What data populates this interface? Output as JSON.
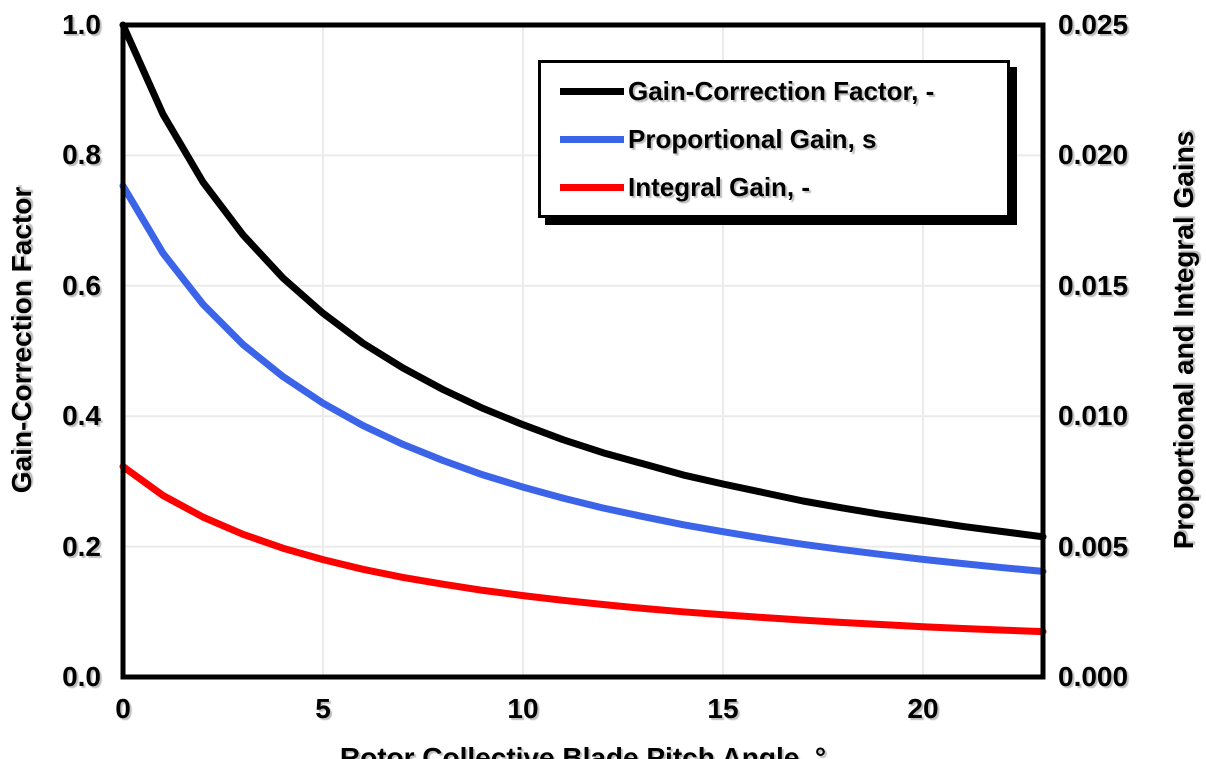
{
  "chart_data": {
    "type": "line",
    "title": "",
    "xlabel": "Rotor Collective Blade Pitch Angle, °",
    "ylabel_left": "Gain-Correction Factor",
    "ylabel_right": "Proportional and Integral Gains",
    "xlim": [
      0,
      23
    ],
    "xticks": [
      0,
      5,
      10,
      15,
      20
    ],
    "xtick_labels": [
      "0",
      "5",
      "10",
      "15",
      "20"
    ],
    "ylim_left": [
      0.0,
      1.0
    ],
    "yticks_left": [
      0.0,
      0.2,
      0.4,
      0.6,
      0.8,
      1.0
    ],
    "ytick_labels_left": [
      "0.0",
      "0.2",
      "0.4",
      "0.6",
      "0.8",
      "1.0"
    ],
    "ylim_right": [
      0.0,
      0.025
    ],
    "yticks_right": [
      0.0,
      0.005,
      0.01,
      0.015,
      0.02,
      0.025
    ],
    "ytick_labels_right": [
      "0.000",
      "0.005",
      "0.010",
      "0.015",
      "0.020",
      "0.025"
    ],
    "grid": true,
    "gridline_color": "#ebebeb",
    "legend_position": "top-center-inside",
    "x": [
      0,
      1,
      2,
      3,
      4,
      5,
      6,
      7,
      8,
      9,
      10,
      11,
      12,
      13,
      14,
      15,
      16,
      17,
      18,
      19,
      20,
      21,
      22,
      23
    ],
    "series": [
      {
        "name": "Gain-Correction Factor, -",
        "axis": "left",
        "color": "#000000",
        "values": [
          1.0,
          0.863,
          0.759,
          0.678,
          0.612,
          0.558,
          0.512,
          0.474,
          0.441,
          0.412,
          0.387,
          0.364,
          0.344,
          0.327,
          0.31,
          0.296,
          0.283,
          0.27,
          0.259,
          0.249,
          0.24,
          0.231,
          0.223,
          0.215
        ]
      },
      {
        "name": "Proportional Gain, s",
        "axis": "right",
        "color": "#3B64E9",
        "values": [
          0.01883,
          0.01625,
          0.01429,
          0.01275,
          0.01152,
          0.0105,
          0.00964,
          0.00892,
          0.0083,
          0.00775,
          0.00728,
          0.00686,
          0.00648,
          0.00615,
          0.00584,
          0.00557,
          0.00532,
          0.00509,
          0.00488,
          0.00469,
          0.00451,
          0.00435,
          0.00419,
          0.00405
        ]
      },
      {
        "name": "Integral Gain, -",
        "axis": "right",
        "color": "#FF0000",
        "values": [
          0.00807,
          0.00696,
          0.00613,
          0.00547,
          0.00494,
          0.0045,
          0.00413,
          0.00382,
          0.00356,
          0.00332,
          0.00312,
          0.00294,
          0.00278,
          0.00263,
          0.0025,
          0.00239,
          0.00228,
          0.00218,
          0.00209,
          0.00201,
          0.00193,
          0.00186,
          0.0018,
          0.00174
        ]
      }
    ]
  }
}
